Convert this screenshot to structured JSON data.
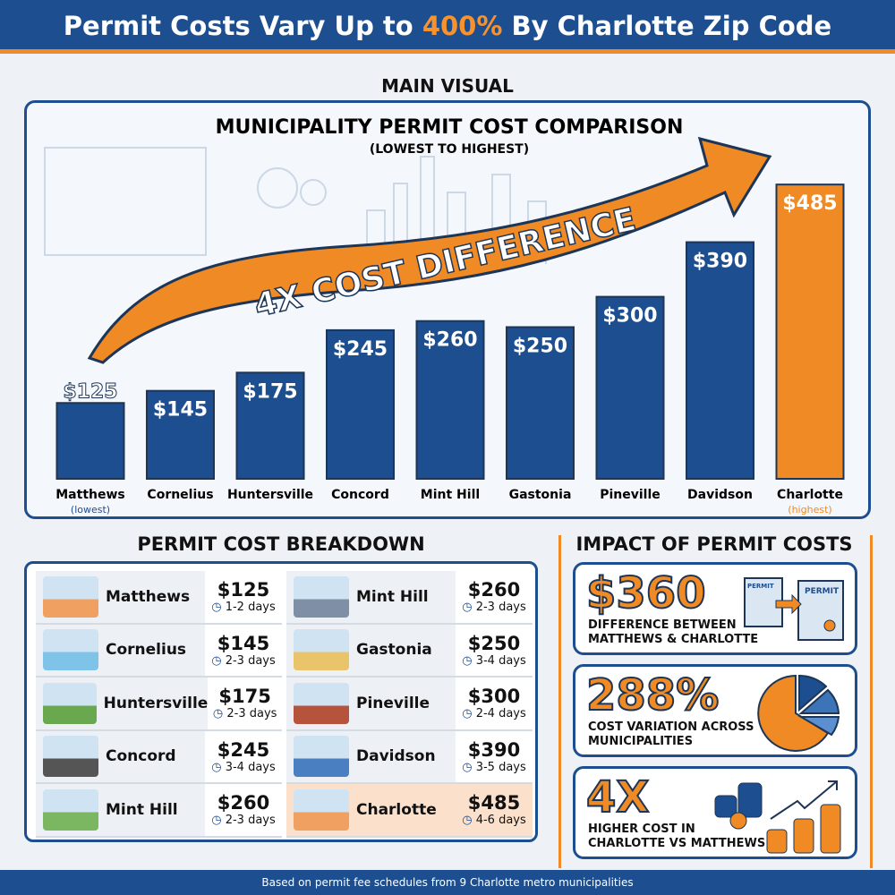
{
  "header": {
    "title_pre": "Permit Costs Vary Up to ",
    "title_highlight": "400%",
    "title_post": " By Charlotte Zip Code"
  },
  "main_visual_label": "MAIN VISUAL",
  "chart_data": {
    "type": "bar",
    "title": "MUNICIPALITY PERMIT COST COMPARISON",
    "subtitle": "(LOWEST TO HIGHEST)",
    "annotation": "4X COST DIFFERENCE",
    "categories": [
      "Matthews",
      "Cornelius",
      "Huntersville",
      "Concord",
      "Mint Hill",
      "Gastonia",
      "Pineville",
      "Davidson",
      "Charlotte"
    ],
    "values": [
      125,
      145,
      175,
      245,
      260,
      250,
      300,
      390,
      485
    ],
    "value_labels": [
      "$125",
      "$145",
      "$175",
      "$245",
      "$260",
      "$250",
      "$300",
      "$390",
      "$485"
    ],
    "sublabels": {
      "Matthews": "(lowest)",
      "Charlotte": "(highest)"
    },
    "colors": {
      "default": "#1d4e8f",
      "highlight": "#f08a24"
    },
    "highlight": "Charlotte",
    "ylim": [
      0,
      500
    ],
    "grid": false
  },
  "breakdown": {
    "title": "PERMIT COST BREAKDOWN",
    "left": [
      {
        "name": "Matthews",
        "price": "$125",
        "time": "1-2 days"
      },
      {
        "name": "Cornelius",
        "price": "$145",
        "time": "2-3 days"
      },
      {
        "name": "Huntersville",
        "price": "$175",
        "time": "2-3 days"
      },
      {
        "name": "Concord",
        "price": "$245",
        "time": "3-4 days"
      },
      {
        "name": "Mint Hill",
        "price": "$260",
        "time": "2-3 days"
      }
    ],
    "right": [
      {
        "name": "Mint Hill",
        "price": "$260",
        "time": "2-3 days"
      },
      {
        "name": "Gastonia",
        "price": "$250",
        "time": "3-4 days"
      },
      {
        "name": "Pineville",
        "price": "$300",
        "time": "2-4 days"
      },
      {
        "name": "Davidson",
        "price": "$390",
        "time": "3-5 days"
      },
      {
        "name": "Charlotte",
        "price": "$485",
        "time": "4-6 days"
      }
    ]
  },
  "impact": {
    "title": "IMPACT OF PERMIT COSTS",
    "cards": [
      {
        "big": "$360",
        "line1": "DIFFERENCE BETWEEN",
        "line2": "MATTHEWS & CHARLOTTE",
        "icon": "permit-documents-icon",
        "permit_label": "PERMIT"
      },
      {
        "big": "288%",
        "line1": "COST VARIATION ACROSS",
        "line2": "MUNICIPALITIES",
        "icon": "pie-chart-icon"
      },
      {
        "big": "4X",
        "line1": "HIGHER COST IN",
        "line2": "CHARLOTTE VS MATTHEWS",
        "icon": "coin-stacks-growth-icon"
      }
    ]
  },
  "footer": "Based on permit fee schedules from 9 Charlotte metro municipalities"
}
